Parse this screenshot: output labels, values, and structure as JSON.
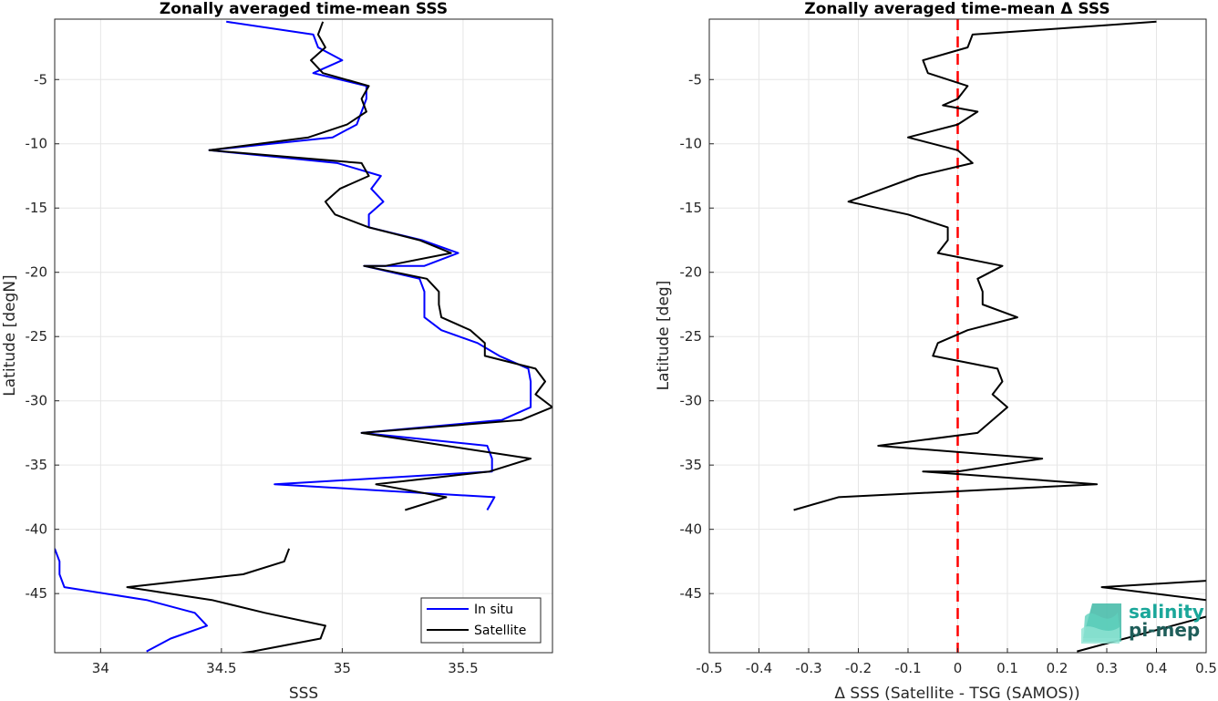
{
  "chart_data": [
    {
      "type": "line",
      "title": "Zonally averaged time-mean SSS",
      "xlabel": "SSS",
      "ylabel": "Latitude [degN]",
      "xlim": [
        33.81,
        35.87
      ],
      "ylim": [
        -49.6,
        -0.3
      ],
      "xticks": [
        34,
        34.5,
        35,
        35.5
      ],
      "xtick_labels": [
        "34",
        "34.5",
        "35",
        "35.5"
      ],
      "yticks": [
        -5,
        -10,
        -15,
        -20,
        -25,
        -30,
        -35,
        -40,
        -45
      ],
      "ytick_labels": [
        "-5",
        "-10",
        "-15",
        "-20",
        "-25",
        "-30",
        "-35",
        "-40",
        "-45"
      ],
      "grid": true,
      "legend": "bottom-right",
      "series": [
        {
          "name": "In situ",
          "color": "#0000ff",
          "segments": [
            [
              [
                34.52,
                -0.5
              ],
              [
                34.88,
                -1.5
              ],
              [
                34.9,
                -2.5
              ],
              [
                35.0,
                -3.5
              ],
              [
                34.88,
                -4.5
              ],
              [
                35.1,
                -5.5
              ],
              [
                35.1,
                -6.5
              ],
              [
                35.08,
                -7.5
              ],
              [
                35.06,
                -8.5
              ],
              [
                34.96,
                -9.5
              ],
              [
                34.45,
                -10.5
              ],
              [
                34.98,
                -11.5
              ],
              [
                35.16,
                -12.5
              ],
              [
                35.12,
                -13.5
              ],
              [
                35.17,
                -14.5
              ],
              [
                35.11,
                -15.5
              ],
              [
                35.11,
                -16.5
              ],
              [
                35.33,
                -17.5
              ],
              [
                35.48,
                -18.5
              ],
              [
                35.34,
                -19.5
              ],
              [
                35.09,
                -19.5
              ],
              [
                35.32,
                -20.5
              ],
              [
                35.34,
                -21.5
              ],
              [
                35.34,
                -22.5
              ],
              [
                35.34,
                -23.5
              ],
              [
                35.41,
                -24.5
              ],
              [
                35.56,
                -25.5
              ],
              [
                35.65,
                -26.5
              ],
              [
                35.77,
                -27.5
              ],
              [
                35.78,
                -28.5
              ],
              [
                35.78,
                -29.5
              ],
              [
                35.78,
                -30.5
              ],
              [
                35.66,
                -31.5
              ],
              [
                35.08,
                -32.5
              ],
              [
                35.6,
                -33.5
              ],
              [
                35.62,
                -34.5
              ],
              [
                35.62,
                -35.5
              ],
              [
                34.72,
                -36.5
              ],
              [
                35.63,
                -37.5
              ],
              [
                35.6,
                -38.5
              ]
            ],
            [
              [
                33.81,
                -41.5
              ],
              [
                33.83,
                -42.5
              ],
              [
                33.83,
                -43.5
              ],
              [
                33.85,
                -44.5
              ],
              [
                34.19,
                -45.5
              ],
              [
                34.39,
                -46.5
              ],
              [
                34.44,
                -47.5
              ],
              [
                34.29,
                -48.5
              ],
              [
                34.19,
                -49.5
              ]
            ]
          ]
        },
        {
          "name": "Satellite",
          "color": "#000000",
          "segments": [
            [
              [
                34.92,
                -0.5
              ],
              [
                34.9,
                -1.5
              ],
              [
                34.93,
                -2.5
              ],
              [
                34.87,
                -3.5
              ],
              [
                34.92,
                -4.5
              ],
              [
                35.11,
                -5.5
              ],
              [
                35.08,
                -6.5
              ],
              [
                35.1,
                -7.5
              ],
              [
                35.02,
                -8.5
              ],
              [
                34.86,
                -9.5
              ],
              [
                34.45,
                -10.5
              ],
              [
                35.08,
                -11.5
              ],
              [
                35.11,
                -12.5
              ],
              [
                34.99,
                -13.5
              ],
              [
                34.93,
                -14.5
              ],
              [
                34.97,
                -15.5
              ],
              [
                35.11,
                -16.5
              ],
              [
                35.32,
                -17.5
              ],
              [
                35.45,
                -18.5
              ],
              [
                35.18,
                -19.5
              ],
              [
                35.09,
                -19.5
              ],
              [
                35.35,
                -20.5
              ],
              [
                35.4,
                -21.5
              ],
              [
                35.4,
                -22.5
              ],
              [
                35.41,
                -23.5
              ],
              [
                35.53,
                -24.5
              ],
              [
                35.59,
                -25.5
              ],
              [
                35.59,
                -26.5
              ],
              [
                35.8,
                -27.5
              ],
              [
                35.84,
                -28.5
              ],
              [
                35.8,
                -29.5
              ],
              [
                35.87,
                -30.5
              ],
              [
                35.74,
                -31.5
              ],
              [
                35.08,
                -32.5
              ],
              [
                35.43,
                -33.5
              ],
              [
                35.78,
                -34.5
              ],
              [
                35.61,
                -35.5
              ],
              [
                35.14,
                -36.5
              ],
              [
                35.43,
                -37.5
              ],
              [
                35.26,
                -38.5
              ]
            ],
            [
              [
                34.78,
                -41.5
              ],
              [
                34.76,
                -42.5
              ],
              [
                34.59,
                -43.5
              ],
              [
                34.11,
                -44.5
              ],
              [
                34.46,
                -45.5
              ],
              [
                34.68,
                -46.5
              ],
              [
                34.93,
                -47.5
              ],
              [
                34.91,
                -48.5
              ],
              [
                34.63,
                -49.5
              ],
              [
                34.44,
                -50.0
              ]
            ]
          ]
        }
      ]
    },
    {
      "type": "line",
      "title": "Zonally averaged time-mean Δ SSS",
      "xlabel": "Δ SSS (Satellite - TSG (SAMOS))",
      "ylabel": "Latitude [deg]",
      "xlim": [
        -0.5,
        0.5
      ],
      "ylim": [
        -49.6,
        -0.3
      ],
      "xticks": [
        -0.5,
        -0.4,
        -0.3,
        -0.2,
        -0.1,
        0,
        0.1,
        0.2,
        0.3,
        0.4,
        0.5
      ],
      "xtick_labels": [
        "-0.5",
        "-0.4",
        "-0.3",
        "-0.2",
        "-0.1",
        "0",
        "0.1",
        "0.2",
        "0.3",
        "0.4",
        "0.5"
      ],
      "yticks": [
        -5,
        -10,
        -15,
        -20,
        -25,
        -30,
        -35,
        -40,
        -45
      ],
      "ytick_labels": [
        "-5",
        "-10",
        "-15",
        "-20",
        "-25",
        "-30",
        "-35",
        "-40",
        "-45"
      ],
      "grid": true,
      "reference_line": {
        "x": 0,
        "color": "#ff0000",
        "style": "dashed"
      },
      "series": [
        {
          "color": "#000000",
          "segments": [
            [
              [
                0.4,
                -0.5
              ],
              [
                0.03,
                -1.5
              ],
              [
                0.02,
                -2.5
              ],
              [
                -0.07,
                -3.5
              ],
              [
                -0.06,
                -4.5
              ],
              [
                0.02,
                -5.5
              ],
              [
                0.0,
                -6.5
              ],
              [
                -0.03,
                -7.0
              ],
              [
                0.04,
                -7.5
              ],
              [
                0.0,
                -8.5
              ],
              [
                -0.1,
                -9.5
              ],
              [
                0.0,
                -10.5
              ],
              [
                0.03,
                -11.5
              ],
              [
                -0.08,
                -12.5
              ],
              [
                -0.15,
                -13.5
              ],
              [
                -0.22,
                -14.5
              ],
              [
                -0.1,
                -15.5
              ],
              [
                -0.02,
                -16.5
              ],
              [
                -0.02,
                -17.5
              ],
              [
                -0.04,
                -18.5
              ],
              [
                0.09,
                -19.5
              ],
              [
                0.04,
                -20.5
              ],
              [
                0.05,
                -21.5
              ],
              [
                0.05,
                -22.5
              ],
              [
                0.12,
                -23.5
              ],
              [
                0.02,
                -24.5
              ],
              [
                -0.04,
                -25.5
              ],
              [
                -0.05,
                -26.5
              ],
              [
                0.08,
                -27.5
              ],
              [
                0.09,
                -28.5
              ],
              [
                0.07,
                -29.5
              ],
              [
                0.1,
                -30.5
              ],
              [
                0.07,
                -31.5
              ],
              [
                0.04,
                -32.5
              ],
              [
                -0.16,
                -33.5
              ],
              [
                0.17,
                -34.5
              ],
              [
                0.0,
                -35.5
              ],
              [
                -0.07,
                -35.5
              ],
              [
                0.28,
                -36.5
              ],
              [
                -0.24,
                -37.5
              ],
              [
                -0.33,
                -38.5
              ]
            ],
            [
              [
                0.5,
                -44.0
              ],
              [
                0.29,
                -44.5
              ],
              [
                0.5,
                -45.5
              ]
            ],
            [
              [
                0.5,
                -46.8
              ],
              [
                0.24,
                -49.5
              ]
            ]
          ]
        }
      ]
    }
  ],
  "legend": {
    "items": [
      "In situ",
      "Satellite"
    ]
  },
  "logo": {
    "line1": "salinity",
    "line2": "pi-mep"
  }
}
